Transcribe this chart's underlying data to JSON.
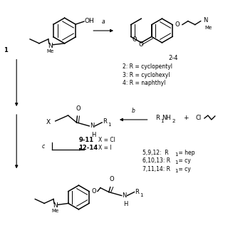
{
  "background": "#ffffff",
  "fig_width": 3.2,
  "fig_height": 3.2,
  "dpi": 100,
  "label_24": "2-4",
  "r2": "2: R = cyclopentyl",
  "r3": "3: R = cyclohexyl",
  "r4": "4: R = naphthyl",
  "r5912": "5,9,12:  R",
  "r61013": "6,10,13: R",
  "r71114": "7,11,14: R",
  "r5912b": " = hep",
  "r61013b": " = cy",
  "r71114b": " = cy",
  "label_911": "9-11",
  "label_xcl": "X = Cl",
  "label_1214": "12-14",
  "label_xi": "X = I"
}
